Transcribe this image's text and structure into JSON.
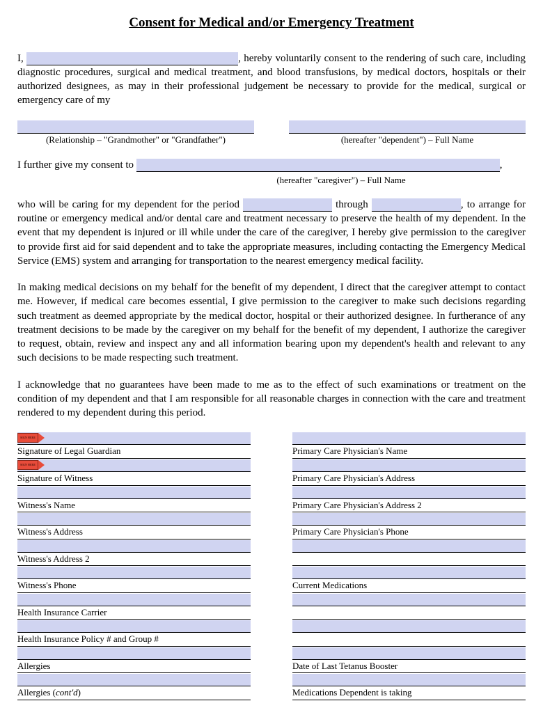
{
  "title": "Consent for Medical and/or Emergency Treatment",
  "p1_a": "I, ",
  "p1_b": ", hereby voluntarily consent to the rendering of such care, including diagnostic procedures, surgical and medical treatment, and blood transfusions, by medical doctors, hospitals or their authorized designees, as may in their professional judgement be necessary to provide for the medical, surgical or emergency care of my",
  "rel_label": "(Relationship – \"Grandmother\" or \"Grandfather\")",
  "dep_label": "(hereafter \"dependent\") – Full Name",
  "p2": "I further give my consent to ",
  "caregiver_label": "(hereafter \"caregiver\") – Full Name",
  "p3_a": "who will be caring for my dependent for the period ",
  "p3_b": " through ",
  "p3_c": ", to arrange for routine or emergency medical and/or dental care and treatment necessary to preserve the health of my dependent.  In the event that my dependent is injured or ill while under the care of the caregiver, I hereby give permission to the caregiver to provide first aid for said dependent and to take the appropriate measures, including contacting the Emergency Medical Service (EMS) system and arranging for transportation to the nearest emergency medical facility.",
  "p4": "In making medical decisions on my behalf for the benefit of my dependent, I direct that the caregiver attempt to contact me.  However, if medical care becomes essential, I give permission to the caregiver to make such decisions regarding such treatment as deemed appropriate by the medical doctor, hospital or their authorized designee.  In furtherance of any treatment decisions to be made by the caregiver on my behalf for the benefit of my dependent, I authorize the caregiver to request, obtain, review and inspect any and all information bearing upon my dependent's health and relevant to any such decisions to be made respecting such treatment.",
  "p5": "I acknowledge that no guarantees have been made to me as to the effect of such examinations or treatment on the condition of my dependent and that I am responsible for all reasonable charges in connection with the care and treatment rendered to my dependent during this period.",
  "sign_tag": "SIGN HERE",
  "left_col": [
    "Signature of Legal Guardian",
    "Signature of Witness",
    "Witness's Name",
    "Witness's Address",
    "Witness's Address 2",
    "Witness's Phone",
    "Health Insurance Carrier",
    "Health Insurance Policy # and Group #",
    "Allergies",
    "Allergies (cont'd)"
  ],
  "right_col": [
    "Primary Care Physician's Name",
    "Primary Care Physician's Address",
    "Primary Care Physician's Address 2",
    "Primary Care Physician's Phone",
    "",
    "Current Medications",
    "",
    "",
    "Date of Last Tetanus Booster",
    "Medications Dependent is taking"
  ],
  "colors": {
    "blank_fill": "#d0d4f1",
    "sign_tag": "#e84b3a"
  }
}
